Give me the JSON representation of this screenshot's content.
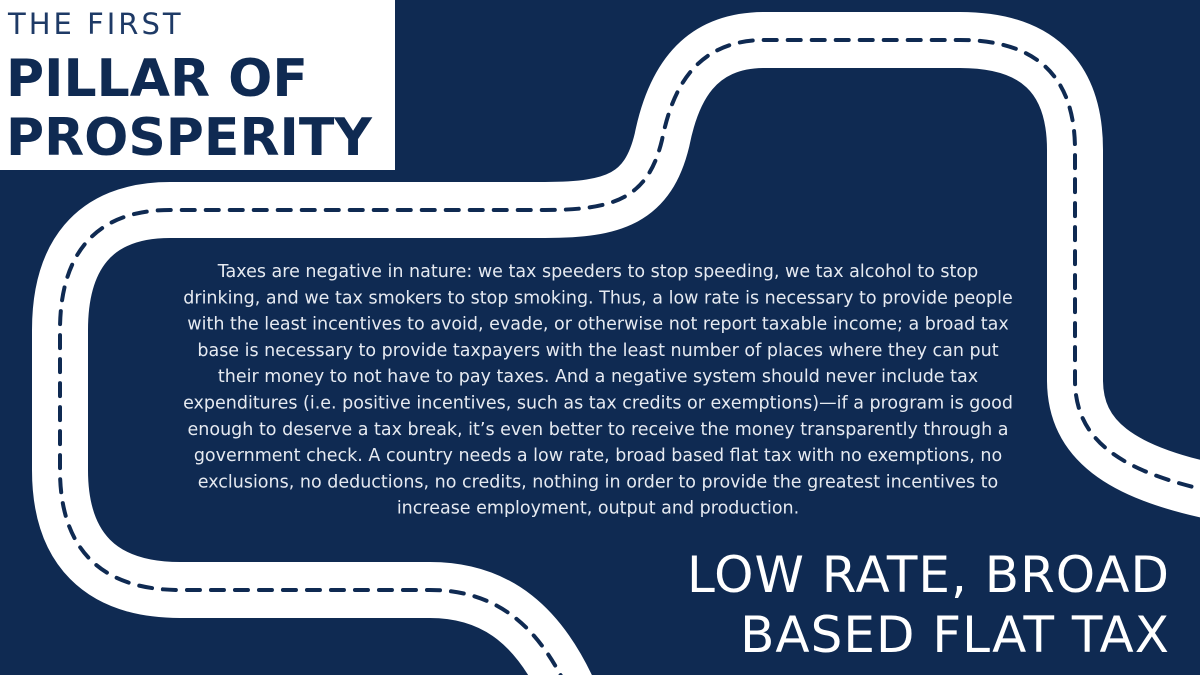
{
  "header": {
    "kicker": "THE FIRST",
    "title_lines": [
      "PILLAR OF",
      "PROSPERITY"
    ]
  },
  "body": {
    "lines": [
      "Taxes are negative in nature: we tax speeders to stop speeding, we tax alcohol to stop",
      "drinking, and we tax smokers to stop smoking. Thus, a low rate is necessary to provide people",
      "with the least incentives to avoid, evade, or otherwise not report taxable income; a broad tax",
      "base is necessary to provide taxpayers with the least number of places where they can put",
      "their money to not have to pay taxes. And a negative system should never include tax",
      "expenditures (i.e. positive incentives, such as tax credits or exemptions)—if a program is good",
      "enough to deserve a tax break, it’s even better to receive the money transparently through a",
      "government check. A country needs a low rate, broad based flat tax with no exemptions, no",
      "exclusions, no deductions, no credits, nothing in order to provide the greatest incentives to",
      "increase employment, output and production."
    ]
  },
  "footer": {
    "heading_lines": [
      "LOW RATE, BROAD",
      "BASED FLAT TAX"
    ]
  }
}
